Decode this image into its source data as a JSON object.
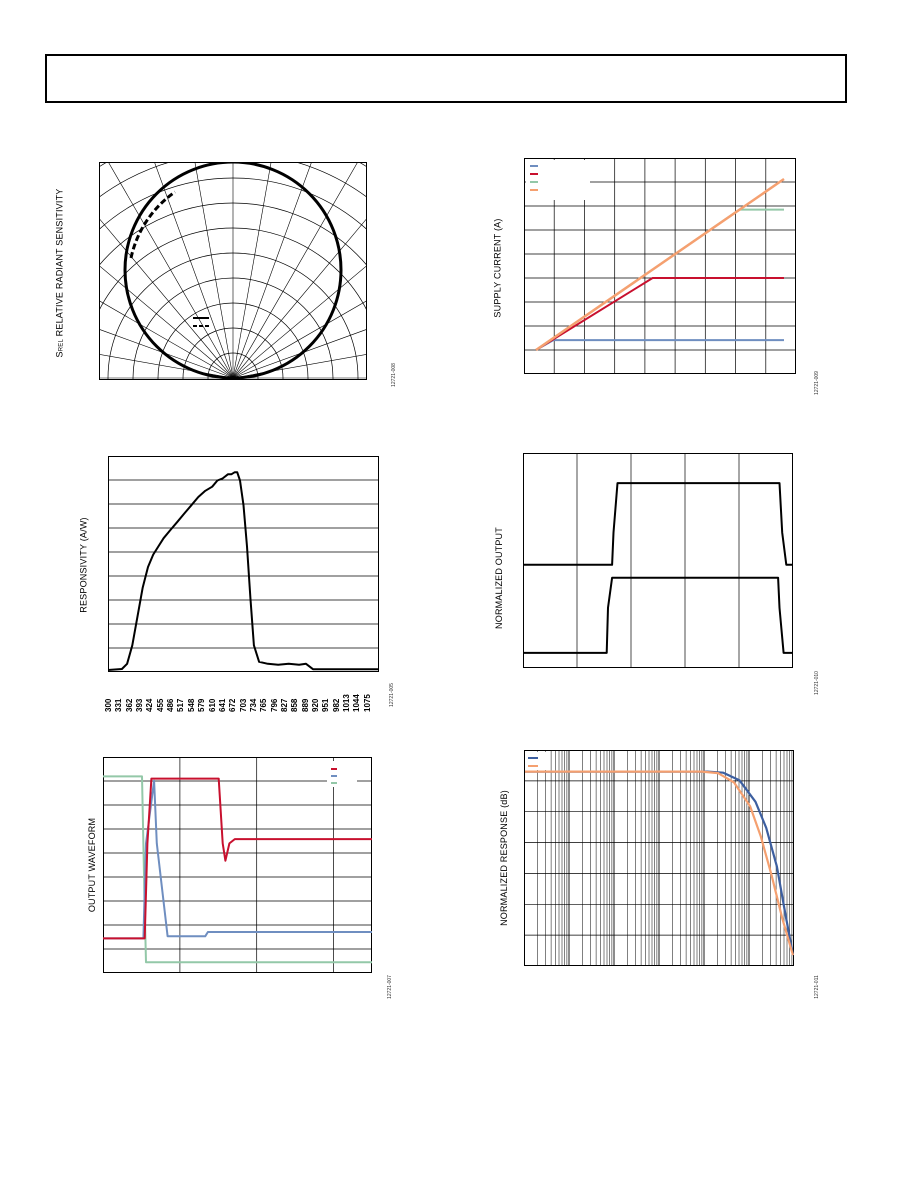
{
  "figures": {
    "fig1": {
      "ylabel_main": "RELATIVE RADIANT SENSITIVITY",
      "ylabel_sym": "S",
      "ylabel_sub": "REL",
      "code": "12721-008",
      "chart_data": {
        "type": "polar",
        "series": [
          {
            "values": [],
            "style": "solid"
          },
          {
            "values": [],
            "style": "dashed"
          }
        ]
      }
    },
    "fig2": {
      "ylabel": "SUPPLY CURRENT (A)",
      "code": "12721-009",
      "chart_data": {
        "type": "line",
        "xlim": [
          0,
          1
        ],
        "ylim": [
          0,
          1
        ],
        "colors": [
          "#6f8ec0",
          "#c8102e",
          "#93c8a8",
          "#f5a070"
        ],
        "series": [
          {
            "x": [
              0.0,
              0.07,
              1.0
            ],
            "y": [
              0.0,
              0.055,
              0.055
            ]
          },
          {
            "x": [
              0.0,
              0.47,
              1.0
            ],
            "y": [
              0.0,
              0.4,
              0.4
            ]
          },
          {
            "x": [
              0.0,
              0.82,
              1.0
            ],
            "y": [
              0.0,
              0.78,
              0.78
            ]
          },
          {
            "x": [
              0.0,
              1.0
            ],
            "y": [
              0.0,
              0.95
            ]
          }
        ]
      }
    },
    "fig3": {
      "ylabel": "RESPONSIVITY (A/W)",
      "code": "12721-005",
      "xticks": [
        "300",
        "331",
        "362",
        "393",
        "424",
        "455",
        "486",
        "517",
        "548",
        "579",
        "610",
        "641",
        "672",
        "703",
        "734",
        "765",
        "796",
        "827",
        "858",
        "889",
        "920",
        "951",
        "982",
        "1013",
        "1044",
        "1075"
      ],
      "chart_data": {
        "type": "line",
        "xlim": [
          300,
          1080
        ],
        "ylim": [
          0,
          1
        ],
        "series": [
          {
            "x": [
              300,
              340,
              355,
              370,
              385,
              400,
              415,
              430,
              445,
              460,
              480,
              500,
              520,
              540,
              560,
              580,
              600,
              615,
              630,
              645,
              655,
              665,
              672,
              680,
              690,
              700,
              710,
              720,
              735,
              760,
              790,
              820,
              850,
              870,
              890,
              920,
              1080
            ],
            "y": [
              0.0,
              0.005,
              0.03,
              0.12,
              0.26,
              0.4,
              0.5,
              0.56,
              0.6,
              0.64,
              0.68,
              0.72,
              0.76,
              0.8,
              0.84,
              0.87,
              0.89,
              0.92,
              0.93,
              0.95,
              0.95,
              0.96,
              0.96,
              0.92,
              0.8,
              0.6,
              0.35,
              0.12,
              0.04,
              0.03,
              0.025,
              0.03,
              0.025,
              0.03,
              0.004,
              0.004,
              0.004
            ]
          }
        ]
      }
    },
    "fig4": {
      "ylabel": "NORMALIZED OUTPUT",
      "code": "12721-010",
      "chart_data": {
        "type": "line",
        "xlim": [
          0,
          1
        ],
        "ylim": [
          0,
          1
        ],
        "series": [
          {
            "x": [
              0.0,
              0.33,
              0.335,
              0.35,
              0.95,
              0.96,
              0.975,
              1.0
            ],
            "y": [
              0.48,
              0.48,
              0.63,
              0.86,
              0.86,
              0.63,
              0.48,
              0.48
            ]
          },
          {
            "x": [
              0.0,
              0.31,
              0.315,
              0.33,
              0.945,
              0.95,
              0.965,
              1.0
            ],
            "y": [
              0.07,
              0.07,
              0.28,
              0.42,
              0.42,
              0.28,
              0.07,
              0.07
            ]
          }
        ]
      }
    },
    "fig5": {
      "ylabel": "OUTPUT WAVEFORM",
      "code": "12721-007",
      "chart_data": {
        "type": "line",
        "xlim": [
          0,
          1
        ],
        "ylim": [
          0,
          1
        ],
        "colors": [
          "#c8102e",
          "#6f8ec0",
          "#93c8a8"
        ],
        "series": [
          {
            "x": [
              0.0,
              0.155,
              0.165,
              0.18,
              0.43,
              0.445,
              0.455,
              0.47,
              0.49,
              1.0
            ],
            "y": [
              0.16,
              0.16,
              0.6,
              0.9,
              0.9,
              0.6,
              0.52,
              0.6,
              0.62,
              0.62
            ]
          },
          {
            "x": [
              0.0,
              0.15,
              0.16,
              0.19,
              0.2,
              0.24,
              0.38,
              0.39,
              1.0
            ],
            "y": [
              0.16,
              0.16,
              0.6,
              0.89,
              0.6,
              0.17,
              0.17,
              0.19,
              0.19
            ]
          },
          {
            "x": [
              0.0,
              0.145,
              0.155,
              0.16,
              1.0
            ],
            "y": [
              0.91,
              0.91,
              0.3,
              0.05,
              0.05
            ]
          }
        ]
      }
    },
    "fig6": {
      "ylabel": "NORMALIZED RESPONSE (dB)",
      "code": "12721-011",
      "chart_data": {
        "type": "line",
        "xscale": "log",
        "xlim": [
          0,
          1
        ],
        "ylim": [
          0,
          1
        ],
        "colors": [
          "#3d5fa0",
          "#f5a070"
        ],
        "series": [
          {
            "x": [
              0.0,
              0.68,
              0.74,
              0.8,
              0.86,
              0.9,
              0.94,
              0.97,
              1.0
            ],
            "y": [
              0.9,
              0.9,
              0.895,
              0.86,
              0.76,
              0.64,
              0.46,
              0.25,
              0.05
            ]
          },
          {
            "x": [
              0.0,
              0.66,
              0.72,
              0.78,
              0.84,
              0.88,
              0.92,
              0.96,
              1.0
            ],
            "y": [
              0.9,
              0.9,
              0.893,
              0.85,
              0.74,
              0.6,
              0.42,
              0.22,
              0.05
            ]
          }
        ]
      }
    }
  }
}
